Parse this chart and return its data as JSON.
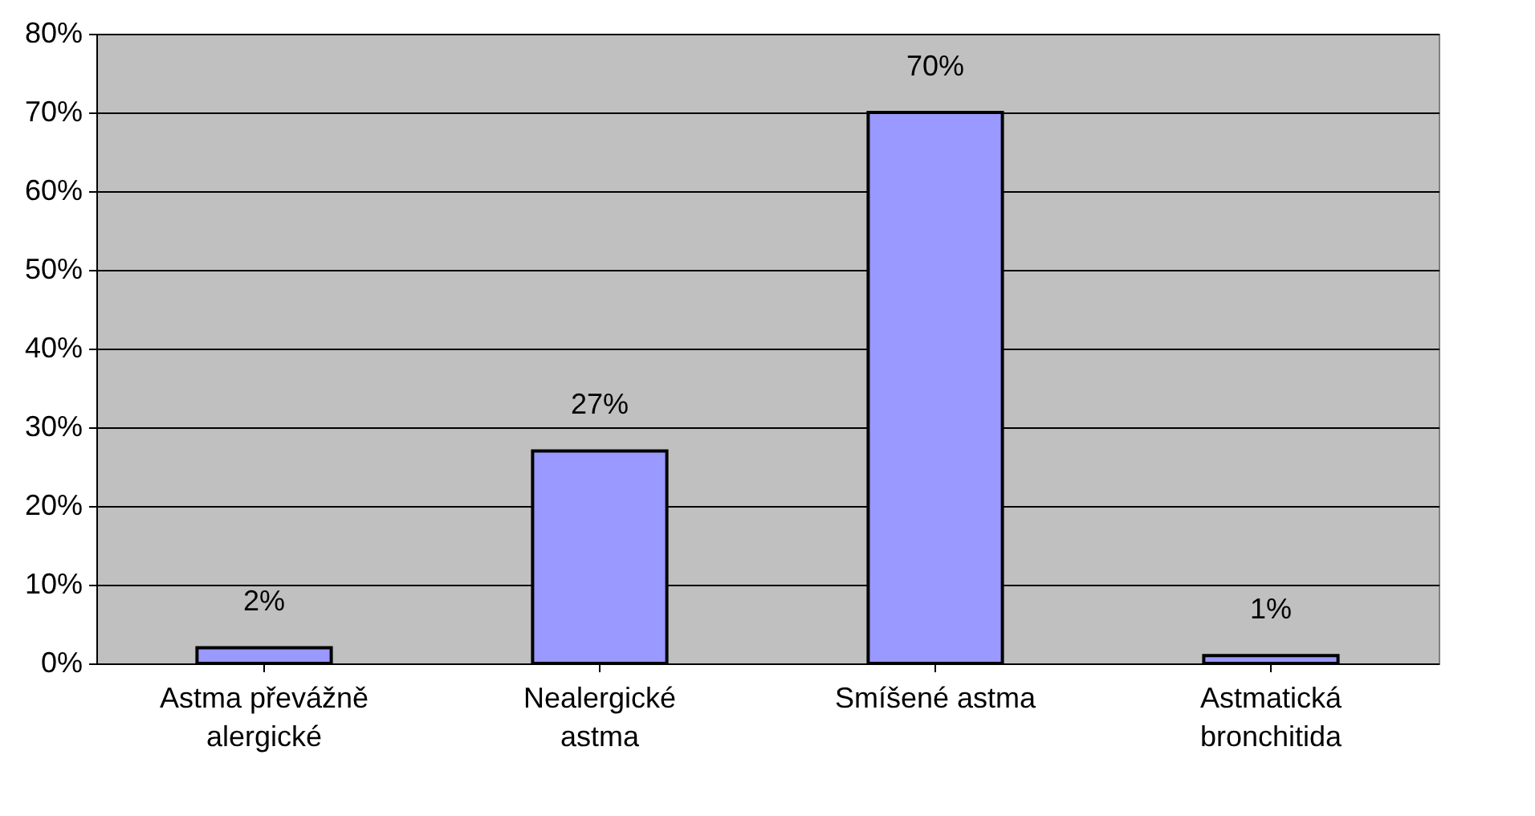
{
  "chart_data": {
    "type": "bar",
    "categories": [
      "Astma převážně alergické",
      "Nealergické astma",
      "Smíšené astma",
      "Astmatická bronchitida"
    ],
    "values": [
      2,
      27,
      70,
      1
    ],
    "color": "#9999ff",
    "value_labels": [
      "2%",
      "27%",
      "70%",
      "1%"
    ],
    "ylim": [
      0,
      80
    ],
    "yticks": [
      {
        "value": 0,
        "label": "0%"
      },
      {
        "value": 10,
        "label": "10%"
      },
      {
        "value": 20,
        "label": "20%"
      },
      {
        "value": 30,
        "label": "30%"
      },
      {
        "value": 40,
        "label": "40%"
      },
      {
        "value": 50,
        "label": "50%"
      },
      {
        "value": 60,
        "label": "60%"
      },
      {
        "value": 70,
        "label": "70%"
      },
      {
        "value": 80,
        "label": "80%"
      }
    ],
    "grid": "y"
  }
}
